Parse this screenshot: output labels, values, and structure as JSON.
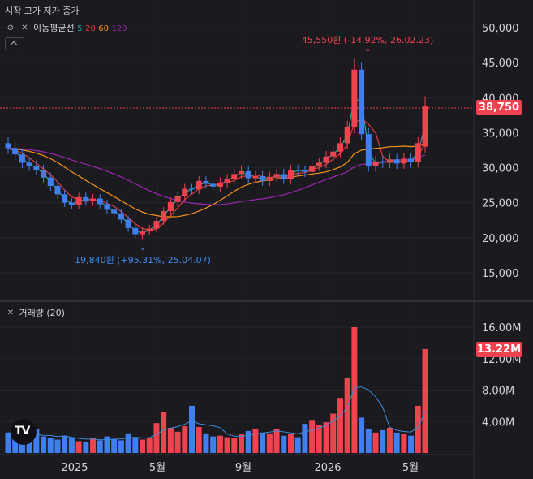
{
  "header": {
    "ohlc_label": "시작 고가 저가 종가",
    "ma_label": "이동평균선",
    "ma_periods": [
      "5",
      "20",
      "60",
      "120"
    ],
    "volume_label": "거래량 (20)"
  },
  "annotations": {
    "high_label": "45,550원 (-14.92%, 26.02.23)",
    "low_label": "19,840원 (+95.31%, 25.04.07)"
  },
  "badges": {
    "last_price": "38,750",
    "last_volume": "13.22M"
  },
  "icons": {
    "visibility": "eye-off-icon",
    "close": "close-icon",
    "collapse": "chevron-up-icon",
    "logo": "tradingview-logo"
  },
  "colors": {
    "up": "#f0434f",
    "down": "#3f7ff0",
    "ma5": "#26a69a",
    "ma20": "#e03a3e",
    "ma60": "#f7931a",
    "ma120": "#9c27b0",
    "vol_ma": "#3d8bd9",
    "background": "#1a1a1f"
  },
  "chart_data": [
    {
      "type": "candlestick",
      "y_ticks": [
        "50,000",
        "45,000",
        "40,000",
        "35,000",
        "30,000",
        "25,000",
        "20,000",
        "15,000"
      ],
      "ylim": [
        12000,
        53000
      ],
      "x_ticks": [
        "2025",
        "5월",
        "9월",
        "2026",
        "5월"
      ],
      "last_price": 38750,
      "period_high": 45550,
      "period_low": 19840,
      "series": [
        {
          "name": "이동평균선 5"
        },
        {
          "name": "이동평균선 20"
        },
        {
          "name": "이동평균선 60"
        },
        {
          "name": "이동평균선 120"
        }
      ],
      "weekly_closes": [
        32800,
        31900,
        30700,
        30300,
        29700,
        28600,
        27400,
        26200,
        25000,
        24700,
        25800,
        25200,
        25600,
        24800,
        24000,
        23500,
        22600,
        21400,
        20500,
        20900,
        21300,
        22400,
        23800,
        25100,
        25900,
        27000,
        26900,
        28100,
        27700,
        27300,
        27900,
        28400,
        29100,
        29500,
        28500,
        28800,
        28100,
        28700,
        29100,
        28400,
        29700,
        29600,
        29400,
        30300,
        30700,
        31600,
        32300,
        33500,
        35800,
        44000,
        34800,
        30200,
        30900,
        30700,
        31200,
        30600,
        31300,
        30800,
        33500,
        38750
      ]
    },
    {
      "type": "bar",
      "title": "거래량 (20)",
      "y_ticks": [
        "16.00M",
        "12.00M",
        "8.00M",
        "4.00M"
      ],
      "ylim": [
        0,
        17500000
      ],
      "last_volume": "13.22M",
      "values_m": [
        2.6,
        2.0,
        2.3,
        1.8,
        3.0,
        2.1,
        1.9,
        1.7,
        2.2,
        2.0,
        1.5,
        1.4,
        1.9,
        1.6,
        2.1,
        1.8,
        1.6,
        2.5,
        2.0,
        1.7,
        1.9,
        3.8,
        5.2,
        3.2,
        2.7,
        3.4,
        6.0,
        3.3,
        2.5,
        2.1,
        2.2,
        2.0,
        1.9,
        2.4,
        2.8,
        3.0,
        2.6,
        2.5,
        3.1,
        2.2,
        2.4,
        2.0,
        3.7,
        4.2,
        3.6,
        3.9,
        5.0,
        7.0,
        9.5,
        16.0,
        4.5,
        3.1,
        2.6,
        2.9,
        3.2,
        2.6,
        2.4,
        2.2,
        6.0,
        13.22
      ]
    }
  ]
}
